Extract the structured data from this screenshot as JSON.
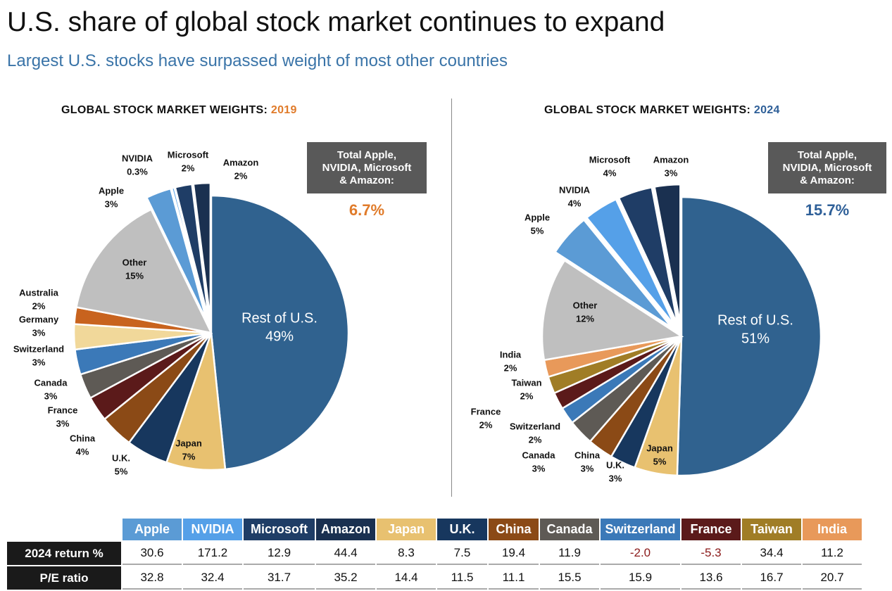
{
  "title": "U.S. share of global stock market continues to expand",
  "subtitle": "Largest U.S. stocks have surpassed weight of most other countries",
  "chart_data": [
    {
      "type": "pie",
      "title_prefix": "GLOBAL STOCK MARKET WEIGHTS: ",
      "title_year": "2019",
      "title_year_color": "#e07b2a",
      "total_box": "Total Apple,\nNVIDIA, Microsoft\n& Amazon:",
      "total_value": "6.7%",
      "total_color": "#e07b2a",
      "slices": [
        {
          "label": "Rest of U.S.",
          "value": 49,
          "text": "49%",
          "color": "#30628f",
          "inside": true
        },
        {
          "label": "Japan",
          "value": 7,
          "text": "7%",
          "color": "#e8c170",
          "inside": true
        },
        {
          "label": "U.K.",
          "value": 5,
          "text": "5%",
          "color": "#17375e"
        },
        {
          "label": "China",
          "value": 4,
          "text": "4%",
          "color": "#8b4a16"
        },
        {
          "label": "France",
          "value": 3,
          "text": "3%",
          "color": "#5b1a1a"
        },
        {
          "label": "Canada",
          "value": 3,
          "text": "3%",
          "color": "#5e5a55"
        },
        {
          "label": "Switzerland",
          "value": 3,
          "text": "3%",
          "color": "#3b79b8"
        },
        {
          "label": "Germany",
          "value": 3,
          "text": "3%",
          "color": "#f1d89a"
        },
        {
          "label": "Australia",
          "value": 2,
          "text": "2%",
          "color": "#c8631e"
        },
        {
          "label": "Other",
          "value": 15,
          "text": "15%",
          "color": "#bfbfbf",
          "inside": true
        },
        {
          "label": "Apple",
          "value": 3,
          "text": "3%",
          "color": "#5b9bd5",
          "explode": true
        },
        {
          "label": "NVIDIA",
          "value": 0.3,
          "text": "0.3%",
          "color": "#55a0e8",
          "explode": true
        },
        {
          "label": "Microsoft",
          "value": 2,
          "text": "2%",
          "color": "#1f3d66",
          "explode": true
        },
        {
          "label": "Amazon",
          "value": 2,
          "text": "2%",
          "color": "#1a3050",
          "explode": true
        }
      ]
    },
    {
      "type": "pie",
      "title_prefix": "GLOBAL STOCK MARKET WEIGHTS: ",
      "title_year": "2024",
      "title_year_color": "#2e5f98",
      "total_box": "Total Apple,\nNVIDIA, Microsoft\n& Amazon:",
      "total_value": "15.7%",
      "total_color": "#2e5f98",
      "slices": [
        {
          "label": "Rest of U.S.",
          "value": 51,
          "text": "51%",
          "color": "#30628f",
          "inside": true
        },
        {
          "label": "Japan",
          "value": 5,
          "text": "5%",
          "color": "#e8c170",
          "inside": true
        },
        {
          "label": "U.K.",
          "value": 3,
          "text": "3%",
          "color": "#17375e"
        },
        {
          "label": "China",
          "value": 3,
          "text": "3%",
          "color": "#8b4a16"
        },
        {
          "label": "Canada",
          "value": 3,
          "text": "3%",
          "color": "#5e5a55"
        },
        {
          "label": "Switzerland",
          "value": 2,
          "text": "2%",
          "color": "#3b79b8"
        },
        {
          "label": "France",
          "value": 2,
          "text": "2%",
          "color": "#5b1a1a"
        },
        {
          "label": "Taiwan",
          "value": 2,
          "text": "2%",
          "color": "#a07d26"
        },
        {
          "label": "India",
          "value": 2,
          "text": "2%",
          "color": "#e8995a"
        },
        {
          "label": "Other",
          "value": 12,
          "text": "12%",
          "color": "#bfbfbf",
          "inside": true
        },
        {
          "label": "Apple",
          "value": 5,
          "text": "5%",
          "color": "#5b9bd5",
          "explode": true
        },
        {
          "label": "NVIDIA",
          "value": 4,
          "text": "4%",
          "color": "#55a0e8",
          "explode": true
        },
        {
          "label": "Microsoft",
          "value": 4,
          "text": "4%",
          "color": "#1f3d66",
          "explode": true
        },
        {
          "label": "Amazon",
          "value": 3,
          "text": "3%",
          "color": "#1a3050",
          "explode": true
        }
      ]
    }
  ],
  "table": {
    "columns": [
      {
        "name": "Apple",
        "color": "#5b9bd5"
      },
      {
        "name": "NVIDIA",
        "color": "#55a0e8"
      },
      {
        "name": "Microsoft",
        "color": "#1f3d66"
      },
      {
        "name": "Amazon",
        "color": "#1a3050"
      },
      {
        "name": "Japan",
        "color": "#e8c170"
      },
      {
        "name": "U.K.",
        "color": "#17375e"
      },
      {
        "name": "China",
        "color": "#8b4a16"
      },
      {
        "name": "Canada",
        "color": "#5e5a55"
      },
      {
        "name": "Switzerland",
        "color": "#3b79b8"
      },
      {
        "name": "France",
        "color": "#5b1a1a"
      },
      {
        "name": "Taiwan",
        "color": "#a07d26"
      },
      {
        "name": "India",
        "color": "#e8995a"
      }
    ],
    "rows": [
      {
        "label": "2024 return %",
        "values": [
          "30.6",
          "171.2",
          "12.9",
          "44.4",
          "8.3",
          "7.5",
          "19.4",
          "11.9",
          "-2.0",
          "-5.3",
          "34.4",
          "11.2"
        ]
      },
      {
        "label": "P/E ratio",
        "values": [
          "32.8",
          "32.4",
          "31.7",
          "35.2",
          "14.4",
          "11.5",
          "11.1",
          "15.5",
          "15.9",
          "13.6",
          "16.7",
          "20.7"
        ]
      }
    ]
  }
}
